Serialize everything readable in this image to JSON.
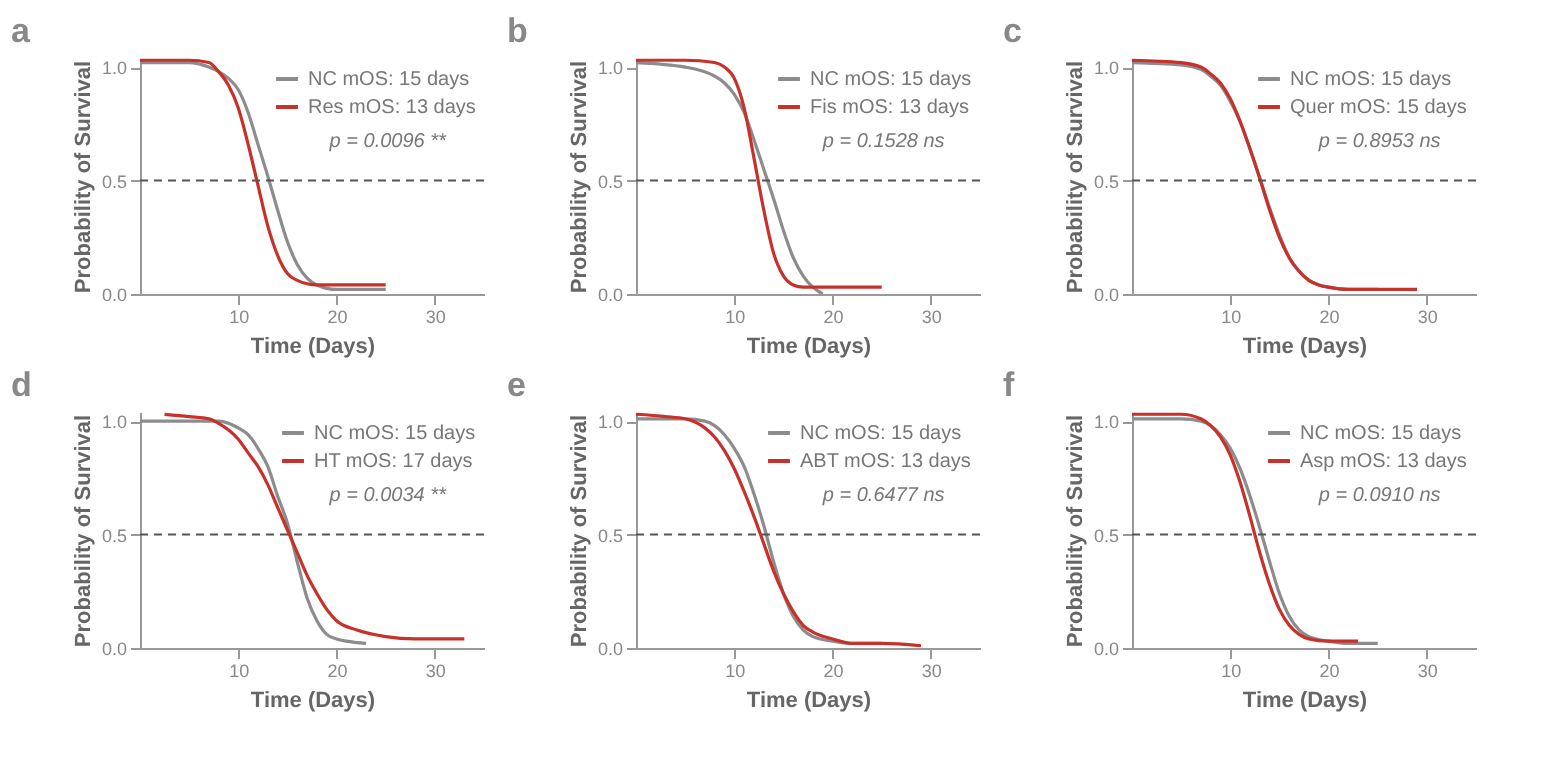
{
  "chart_data": [
    {
      "type": "line",
      "title": "a",
      "xlabel": "Time (Days)",
      "ylabel": "Probability of Survival",
      "xlim": [
        0,
        35
      ],
      "ylim": [
        0,
        1.04
      ],
      "xticks": [
        10,
        20,
        30
      ],
      "yticks": [
        {
          "value": 0,
          "label": "0.0"
        },
        {
          "value": 0.5,
          "label": "0.5"
        },
        {
          "value": 1,
          "label": "1.0"
        }
      ],
      "grid": false,
      "legend": "top right",
      "annotations": [
        "p = 0.0096 **"
      ],
      "ref_lines": [
        {
          "axis": "y",
          "value": 0.5,
          "line_style": "dashed",
          "color": "#555555"
        }
      ],
      "series": [
        {
          "name": "NC mOS: 15 days",
          "color": "#8c8c8c",
          "x": [
            0,
            5,
            7,
            8,
            9,
            10,
            11,
            12,
            13,
            14,
            15,
            16,
            17,
            18,
            20,
            25
          ],
          "values": [
            1.02,
            1.02,
            1.0,
            0.98,
            0.95,
            0.9,
            0.8,
            0.66,
            0.52,
            0.37,
            0.23,
            0.13,
            0.07,
            0.04,
            0.02,
            0.02
          ]
        },
        {
          "name": "Res mOS: 13 days",
          "color": "#c8302a",
          "x": [
            0,
            5,
            7,
            8,
            9,
            10,
            11,
            12,
            13,
            14,
            15,
            16,
            18,
            20,
            25
          ],
          "values": [
            1.03,
            1.03,
            1.02,
            0.98,
            0.92,
            0.82,
            0.66,
            0.48,
            0.3,
            0.17,
            0.09,
            0.06,
            0.04,
            0.04,
            0.04
          ]
        }
      ]
    },
    {
      "type": "line",
      "title": "b",
      "xlabel": "Time (Days)",
      "ylabel": "Probability of Survival",
      "xlim": [
        0,
        35
      ],
      "ylim": [
        0,
        1.04
      ],
      "xticks": [
        10,
        20,
        30
      ],
      "yticks": [
        {
          "value": 0,
          "label": "0.0"
        },
        {
          "value": 0.5,
          "label": "0.5"
        },
        {
          "value": 1,
          "label": "1.0"
        }
      ],
      "grid": false,
      "legend": "top right",
      "annotations": [
        "p = 0.1528 ns"
      ],
      "ref_lines": [
        {
          "axis": "y",
          "value": 0.5,
          "line_style": "dashed",
          "color": "#555555"
        }
      ],
      "series": [
        {
          "name": "NC mOS: 15 days",
          "color": "#8c8c8c",
          "x": [
            0,
            5,
            8,
            9,
            10,
            11,
            12,
            13,
            14,
            15,
            16,
            17,
            18,
            19
          ],
          "values": [
            1.02,
            1.0,
            0.96,
            0.93,
            0.88,
            0.8,
            0.68,
            0.55,
            0.42,
            0.28,
            0.16,
            0.08,
            0.03,
            0.0
          ]
        },
        {
          "name": "Fis mOS: 13 days",
          "color": "#c8302a",
          "x": [
            0,
            5,
            8,
            9,
            10,
            11,
            12,
            13,
            14,
            15,
            16,
            17,
            18,
            20,
            25
          ],
          "values": [
            1.03,
            1.03,
            1.02,
            1.0,
            0.95,
            0.82,
            0.6,
            0.37,
            0.18,
            0.08,
            0.04,
            0.03,
            0.03,
            0.03,
            0.03
          ]
        }
      ]
    },
    {
      "type": "line",
      "title": "c",
      "xlabel": "Time (Days)",
      "ylabel": "Probability of Survival",
      "xlim": [
        0,
        35
      ],
      "ylim": [
        0,
        1.04
      ],
      "xticks": [
        10,
        20,
        30
      ],
      "yticks": [
        {
          "value": 0,
          "label": "0.0"
        },
        {
          "value": 0.5,
          "label": "0.5"
        },
        {
          "value": 1,
          "label": "1.0"
        }
      ],
      "grid": false,
      "legend": "top right",
      "annotations": [
        "p = 0.8953 ns"
      ],
      "ref_lines": [
        {
          "axis": "y",
          "value": 0.5,
          "line_style": "dashed",
          "color": "#555555"
        }
      ],
      "series": [
        {
          "name": "NC mOS: 15 days",
          "color": "#8c8c8c",
          "x": [
            0,
            5,
            7,
            8,
            9,
            10,
            11,
            12,
            13,
            14,
            15,
            16,
            17,
            18,
            19,
            20,
            22,
            25
          ],
          "values": [
            1.02,
            1.01,
            0.99,
            0.96,
            0.92,
            0.85,
            0.76,
            0.64,
            0.51,
            0.38,
            0.26,
            0.16,
            0.1,
            0.06,
            0.04,
            0.03,
            0.02,
            0.02
          ]
        },
        {
          "name": "Quer mOS: 15 days",
          "color": "#c8302a",
          "x": [
            0,
            5,
            7,
            8,
            9,
            10,
            11,
            12,
            13,
            14,
            15,
            16,
            17,
            18,
            19,
            20,
            22,
            25,
            29
          ],
          "values": [
            1.03,
            1.02,
            1.0,
            0.97,
            0.93,
            0.86,
            0.76,
            0.64,
            0.51,
            0.37,
            0.25,
            0.16,
            0.1,
            0.06,
            0.04,
            0.03,
            0.02,
            0.02,
            0.02
          ]
        }
      ]
    },
    {
      "type": "line",
      "title": "d",
      "xlabel": "Time (Days)",
      "ylabel": "Probability of Survival",
      "xlim": [
        0,
        35
      ],
      "ylim": [
        0,
        1.04
      ],
      "xticks": [
        10,
        20,
        30
      ],
      "yticks": [
        {
          "value": 0,
          "label": "0.0"
        },
        {
          "value": 0.5,
          "label": "0.5"
        },
        {
          "value": 1,
          "label": "1.0"
        }
      ],
      "grid": false,
      "legend": "top right",
      "annotations": [
        "p = 0.0034 **"
      ],
      "ref_lines": [
        {
          "axis": "y",
          "value": 0.5,
          "line_style": "dashed",
          "color": "#555555"
        }
      ],
      "series": [
        {
          "name": "NC mOS: 15 days",
          "color": "#8c8c8c",
          "x": [
            0,
            5,
            8,
            10,
            11,
            12,
            13,
            14,
            15,
            16,
            17,
            18,
            19,
            20,
            21,
            23
          ],
          "values": [
            1.0,
            1.0,
            1.0,
            0.97,
            0.94,
            0.88,
            0.8,
            0.67,
            0.55,
            0.38,
            0.22,
            0.12,
            0.06,
            0.04,
            0.03,
            0.02
          ]
        },
        {
          "name": "HT mOS: 17 days",
          "color": "#c8302a",
          "x": [
            2.5,
            5,
            7,
            8,
            10,
            11,
            12,
            13,
            14,
            15,
            16,
            17,
            18,
            19,
            20,
            22,
            25,
            28,
            33
          ],
          "values": [
            1.03,
            1.02,
            1.01,
            0.99,
            0.92,
            0.86,
            0.8,
            0.72,
            0.62,
            0.52,
            0.42,
            0.32,
            0.24,
            0.17,
            0.12,
            0.08,
            0.05,
            0.04,
            0.04
          ]
        }
      ]
    },
    {
      "type": "line",
      "title": "e",
      "xlabel": "Time (Days)",
      "ylabel": "Probability of Survival",
      "xlim": [
        0,
        35
      ],
      "ylim": [
        0,
        1.04
      ],
      "xticks": [
        10,
        20,
        30
      ],
      "yticks": [
        {
          "value": 0,
          "label": "0.0"
        },
        {
          "value": 0.5,
          "label": "0.5"
        },
        {
          "value": 1,
          "label": "1.0"
        }
      ],
      "grid": false,
      "legend": "top right",
      "annotations": [
        "p = 0.6477 ns"
      ],
      "ref_lines": [
        {
          "axis": "y",
          "value": 0.5,
          "line_style": "dashed",
          "color": "#555555"
        }
      ],
      "series": [
        {
          "name": "NC mOS: 15 days",
          "color": "#8c8c8c",
          "x": [
            0,
            5,
            7,
            8,
            9,
            10,
            11,
            12,
            13,
            14,
            15,
            16,
            17,
            18,
            20,
            22,
            25
          ],
          "values": [
            1.01,
            1.01,
            1.0,
            0.98,
            0.94,
            0.88,
            0.8,
            0.68,
            0.54,
            0.38,
            0.24,
            0.14,
            0.08,
            0.05,
            0.03,
            0.02,
            0.02
          ]
        },
        {
          "name": "ABT mOS: 13 days",
          "color": "#c8302a",
          "x": [
            0,
            3,
            5,
            7,
            8,
            9,
            10,
            11,
            12,
            13,
            14,
            15,
            16,
            17,
            18,
            20,
            22,
            25,
            29
          ],
          "values": [
            1.03,
            1.02,
            1.01,
            0.97,
            0.93,
            0.87,
            0.79,
            0.69,
            0.58,
            0.46,
            0.34,
            0.24,
            0.16,
            0.1,
            0.07,
            0.04,
            0.02,
            0.02,
            0.01
          ]
        }
      ]
    },
    {
      "type": "line",
      "title": "f",
      "xlabel": "Time (Days)",
      "ylabel": "Probability of Survival",
      "xlim": [
        0,
        35
      ],
      "ylim": [
        0,
        1.04
      ],
      "xticks": [
        10,
        20,
        30
      ],
      "yticks": [
        {
          "value": 0,
          "label": "0.0"
        },
        {
          "value": 0.5,
          "label": "0.5"
        },
        {
          "value": 1,
          "label": "1.0"
        }
      ],
      "grid": false,
      "legend": "top right",
      "annotations": [
        "p = 0.0910 ns"
      ],
      "ref_lines": [
        {
          "axis": "y",
          "value": 0.5,
          "line_style": "dashed",
          "color": "#555555"
        }
      ],
      "series": [
        {
          "name": "NC mOS: 15 days",
          "color": "#8c8c8c",
          "x": [
            0,
            5,
            7,
            8,
            9,
            10,
            11,
            12,
            13,
            14,
            15,
            16,
            17,
            18,
            20,
            22,
            25
          ],
          "values": [
            1.01,
            1.01,
            1.0,
            0.98,
            0.94,
            0.88,
            0.79,
            0.67,
            0.53,
            0.38,
            0.24,
            0.14,
            0.08,
            0.05,
            0.03,
            0.02,
            0.02
          ]
        },
        {
          "name": "Asp mOS: 13 days",
          "color": "#c8302a",
          "x": [
            0,
            5,
            7,
            8,
            9,
            10,
            11,
            12,
            13,
            14,
            15,
            16,
            17,
            18,
            20,
            23
          ],
          "values": [
            1.03,
            1.03,
            1.01,
            0.98,
            0.93,
            0.85,
            0.73,
            0.58,
            0.42,
            0.28,
            0.17,
            0.1,
            0.06,
            0.04,
            0.03,
            0.03
          ]
        }
      ]
    }
  ]
}
